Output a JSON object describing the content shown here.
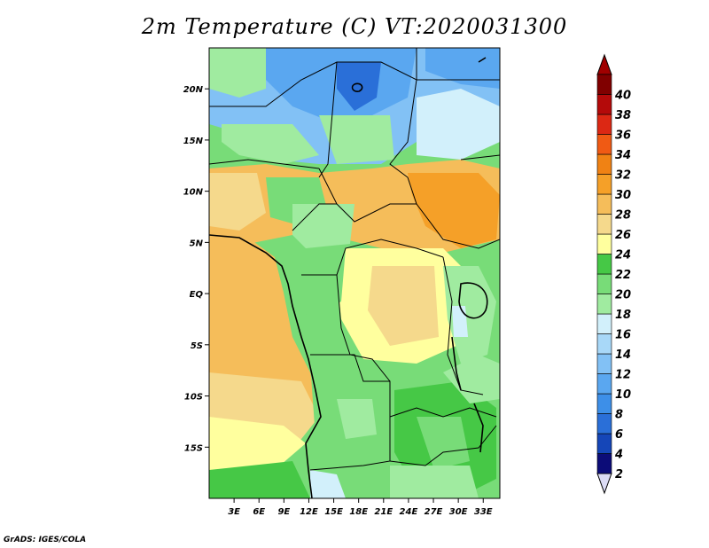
{
  "title": "2m Temperature (C) VT:2020031300",
  "credit": "GrADS: IGES/COLA",
  "map": {
    "lon_range": [
      0,
      35
    ],
    "lat_range": [
      -20,
      24
    ],
    "lon_ticks": [
      "3E",
      "6E",
      "9E",
      "12E",
      "15E",
      "18E",
      "21E",
      "24E",
      "27E",
      "30E",
      "33E"
    ],
    "lat_ticks": [
      "20N",
      "15N",
      "10N",
      "5N",
      "EQ",
      "5S",
      "10S",
      "15S"
    ]
  },
  "colorbar": {
    "labels": [
      "2",
      "4",
      "6",
      "8",
      "10",
      "12",
      "14",
      "16",
      "18",
      "20",
      "22",
      "24",
      "26",
      "28",
      "30",
      "32",
      "34",
      "36",
      "38",
      "40"
    ],
    "colors": [
      "#0c0c78",
      "#1546b8",
      "#2a6fd8",
      "#3d8fe8",
      "#5aa7f0",
      "#82c1f5",
      "#a8d8f8",
      "#d2f0fb",
      "#a0eba0",
      "#78dc78",
      "#46c846",
      "#ffff9e",
      "#f5d98c",
      "#f5bd5a",
      "#f5a028",
      "#f08214",
      "#f05a14",
      "#dc2814",
      "#b40a0a",
      "#800000"
    ],
    "under_color": "#dcdcf5",
    "over_color": "#a00000"
  }
}
